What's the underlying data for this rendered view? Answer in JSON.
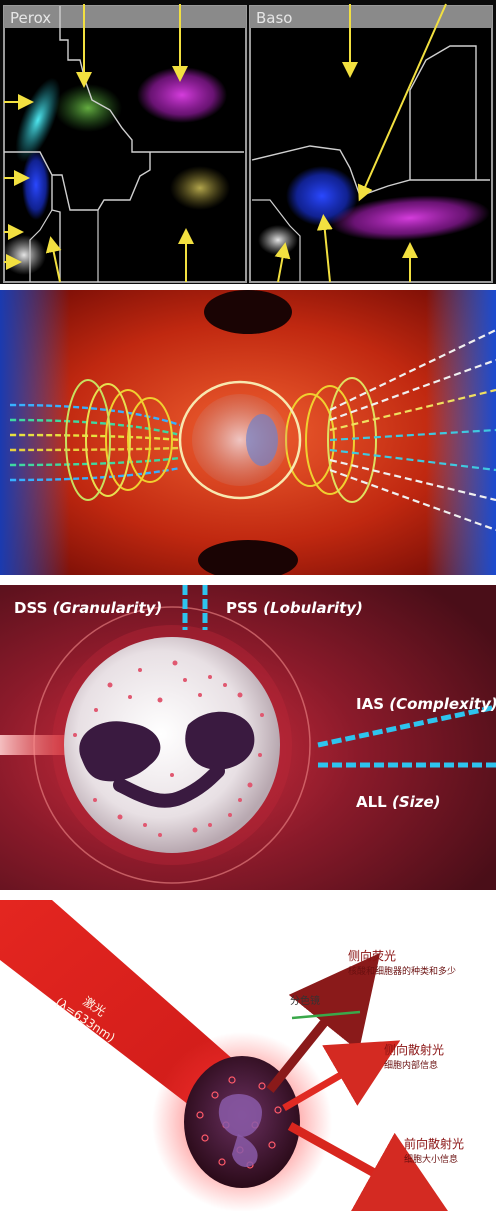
{
  "scatter_panel": {
    "left_title": "Perox",
    "right_title": "Baso"
  },
  "detection_panel": {
    "dss_abbr": "DSS",
    "dss_desc": "(Granularity)",
    "pss_abbr": "PSS",
    "pss_desc": "(Lobularity)",
    "ias_abbr": "IAS",
    "ias_desc": "(Complexity)",
    "all_abbr": "ALL",
    "all_desc": "(Size)"
  },
  "laser_panel": {
    "laser_label": "激光",
    "wavelength_label": "(λ=633nm)",
    "dichroic_label": "分色镜",
    "side_fluorescence_title": "侧向荧光",
    "side_fluorescence_desc": "核酸和细胞器的种类和多少",
    "side_scatter_title": "侧向散射光",
    "side_scatter_desc": "细胞内部信息",
    "forward_scatter_title": "前向散射光",
    "forward_scatter_desc": "细胞大小信息"
  },
  "colors": {
    "scatter_magenta": "#d030d8",
    "scatter_blue": "#1c3cff",
    "scatter_cyan": "#30d8e0",
    "scatter_green": "#5ab040",
    "scatter_yellow": "#d8c850",
    "arrow_yellow": "#f2e040",
    "laser_red": "#e0241e",
    "dashed_cyan": "#2ec4ee"
  }
}
